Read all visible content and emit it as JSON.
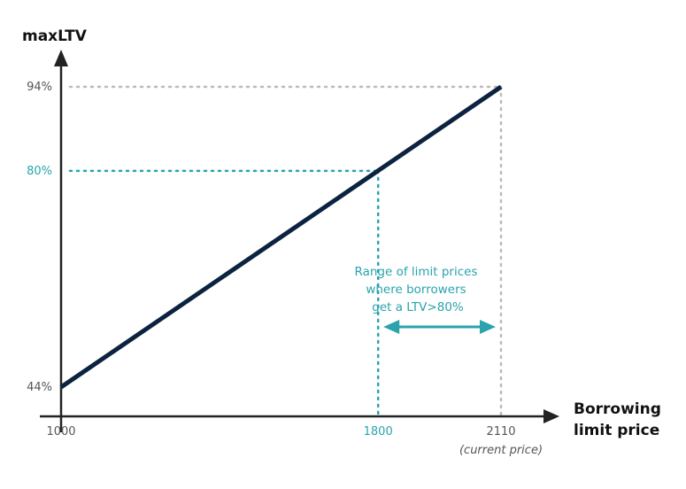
{
  "chart_data": {
    "type": "line",
    "ylabel": "maxLTV",
    "xlabel_lines": [
      "Borrowing",
      "limit price"
    ],
    "x_ticks": [
      {
        "value": 1000,
        "label": "1000",
        "highlight": false
      },
      {
        "value": 1800,
        "label": "1800",
        "highlight": true
      },
      {
        "value": 2110,
        "label": "2110",
        "highlight": false,
        "sublabel": "(current price)"
      }
    ],
    "y_ticks": [
      {
        "value": 44,
        "label": "44%",
        "highlight": false
      },
      {
        "value": 80,
        "label": "80%",
        "highlight": true
      },
      {
        "value": 94,
        "label": "94%",
        "highlight": false
      }
    ],
    "series": [
      {
        "x": [
          1000,
          2110
        ],
        "y": [
          44,
          94
        ]
      }
    ],
    "xlim": [
      1000,
      2110
    ],
    "ylim": [
      44,
      94
    ],
    "reference_lines": [
      {
        "x": 1800,
        "y": 80,
        "color": "#2aa3ad"
      },
      {
        "x": 2110,
        "y": 94,
        "color": "#bbbbbb"
      }
    ],
    "annotation": {
      "lines": [
        "Range of limit prices",
        "where borrowers",
        "get a LTV>80%"
      ],
      "x_from": 1800,
      "x_to": 2110
    },
    "colors": {
      "line": "#0c2340",
      "accent": "#2aa3ad",
      "guide": "#bbbbbb",
      "axis": "#222222"
    }
  }
}
